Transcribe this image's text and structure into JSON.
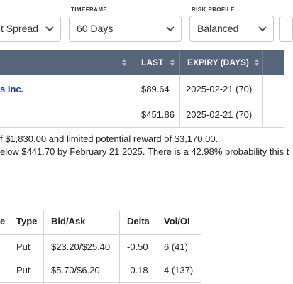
{
  "filters": {
    "strategy": {
      "label": "",
      "value": "t Spread"
    },
    "timeframe": {
      "label": "TIMEFRAME",
      "value": "60 Days"
    },
    "risk": {
      "label": "RISK PROFILE",
      "value": "Balanced"
    }
  },
  "legs_table": {
    "headers": {
      "last": "LAST",
      "expiry": "EXPIRY (DAYS)"
    },
    "rows": [
      {
        "name": "s Inc.",
        "last": "$89.64",
        "expiry": "2025-02-21 (70)"
      },
      {
        "name": "",
        "last": "$451.86",
        "expiry": "2025-02-21 (70)"
      }
    ]
  },
  "description": {
    "line1": "f $1,830.00 and limited potential reward of $3,170.00.",
    "line2": "elow $441.70 by February 21 2025. There is a 42.98% probability this t"
  },
  "options_table": {
    "headers": {
      "col0": "e",
      "type": "Type",
      "bidask": "Bid/Ask",
      "delta": "Delta",
      "voloi": "Vol/OI"
    },
    "rows": [
      {
        "type": "Put",
        "bidask": "$23.20/$25.40",
        "delta": "-0.50",
        "voloi": "6 (41)"
      },
      {
        "type": "Put",
        "bidask": "$5.70/$6.20",
        "delta": "-0.18",
        "voloi": "4 (137)"
      }
    ]
  },
  "colors": {
    "header_bg": "#56657a",
    "link": "#1f3f8f",
    "border": "#d5d5d5"
  },
  "icons": {
    "chevron": "chevron-down-icon",
    "sort": "sort-arrows-icon"
  }
}
